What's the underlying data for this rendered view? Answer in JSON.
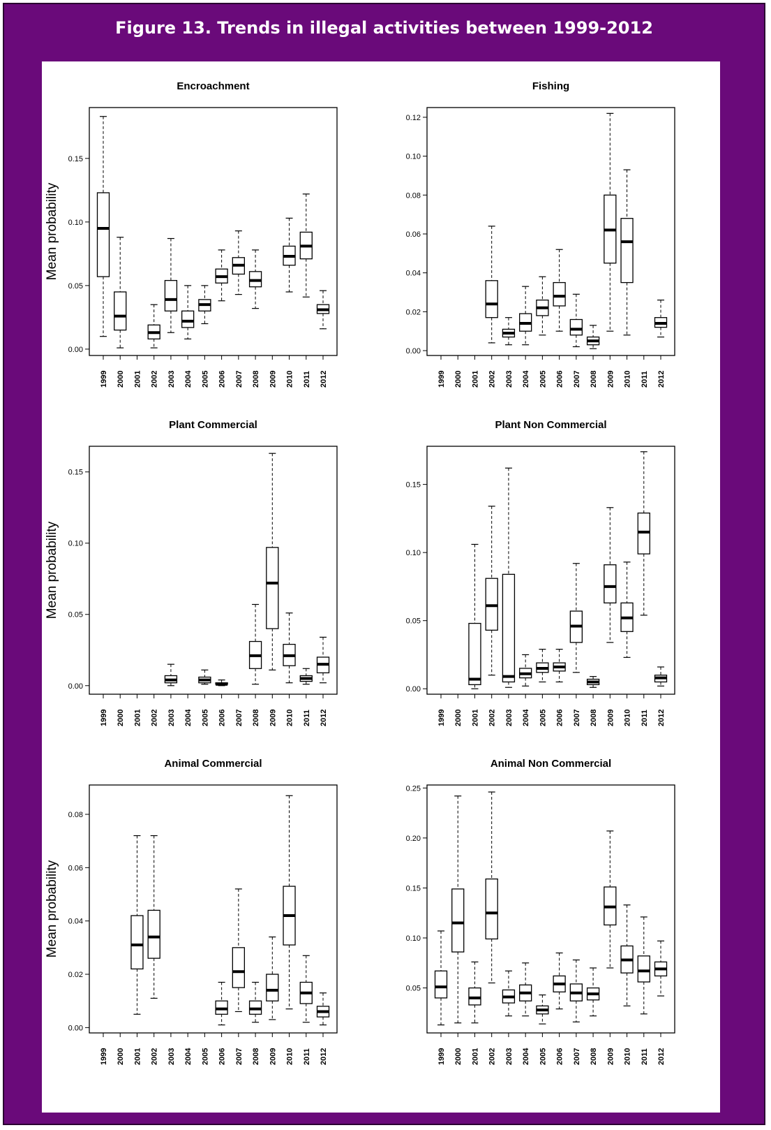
{
  "figure_title": "Figure 13. Trends in illegal activities between 1999-2012",
  "colors": {
    "frame": "#6a0a7a",
    "panel": "#ffffff",
    "ink": "#000000"
  },
  "chart_data": [
    {
      "type": "boxplot",
      "title": "Encroachment",
      "ylabel": "Mean probability",
      "ylim": [
        -0.005,
        0.19
      ],
      "yticks": [
        0.0,
        0.05,
        0.1,
        0.15
      ],
      "ytick_labels": [
        "0.00",
        "0.05",
        "0.10",
        "0.15"
      ],
      "categories": [
        "1999",
        "2000",
        "2001",
        "2002",
        "2003",
        "2004",
        "2005",
        "2006",
        "2007",
        "2008",
        "2009",
        "2010",
        "2011",
        "2012"
      ],
      "boxes": [
        {
          "year": "1999",
          "min": 0.01,
          "q1": 0.057,
          "median": 0.095,
          "q3": 0.123,
          "max": 0.183
        },
        {
          "year": "2000",
          "min": 0.001,
          "q1": 0.015,
          "median": 0.026,
          "q3": 0.045,
          "max": 0.088
        },
        {
          "year": "2002",
          "min": 0.001,
          "q1": 0.008,
          "median": 0.013,
          "q3": 0.019,
          "max": 0.035
        },
        {
          "year": "2003",
          "min": 0.013,
          "q1": 0.03,
          "median": 0.039,
          "q3": 0.054,
          "max": 0.087
        },
        {
          "year": "2004",
          "min": 0.008,
          "q1": 0.017,
          "median": 0.022,
          "q3": 0.03,
          "max": 0.05
        },
        {
          "year": "2005",
          "min": 0.02,
          "q1": 0.03,
          "median": 0.035,
          "q3": 0.039,
          "max": 0.05
        },
        {
          "year": "2006",
          "min": 0.038,
          "q1": 0.052,
          "median": 0.057,
          "q3": 0.063,
          "max": 0.078
        },
        {
          "year": "2007",
          "min": 0.043,
          "q1": 0.059,
          "median": 0.066,
          "q3": 0.072,
          "max": 0.093
        },
        {
          "year": "2008",
          "min": 0.032,
          "q1": 0.049,
          "median": 0.054,
          "q3": 0.061,
          "max": 0.078
        },
        {
          "year": "2010",
          "min": 0.045,
          "q1": 0.066,
          "median": 0.073,
          "q3": 0.081,
          "max": 0.103
        },
        {
          "year": "2011",
          "min": 0.041,
          "q1": 0.071,
          "median": 0.081,
          "q3": 0.092,
          "max": 0.122
        },
        {
          "year": "2012",
          "min": 0.016,
          "q1": 0.028,
          "median": 0.031,
          "q3": 0.035,
          "max": 0.046
        }
      ]
    },
    {
      "type": "boxplot",
      "title": "Fishing",
      "ylabel": "",
      "ylim": [
        -0.0025,
        0.125
      ],
      "yticks": [
        0.0,
        0.02,
        0.04,
        0.06,
        0.08,
        0.1,
        0.12
      ],
      "ytick_labels": [
        "0.00",
        "0.02",
        "0.04",
        "0.06",
        "0.08",
        "0.10",
        "0.12"
      ],
      "categories": [
        "1999",
        "2000",
        "2001",
        "2002",
        "2003",
        "2004",
        "2005",
        "2006",
        "2007",
        "2008",
        "2009",
        "2010",
        "2011",
        "2012"
      ],
      "boxes": [
        {
          "year": "2002",
          "min": 0.004,
          "q1": 0.017,
          "median": 0.024,
          "q3": 0.036,
          "max": 0.064
        },
        {
          "year": "2003",
          "min": 0.003,
          "q1": 0.007,
          "median": 0.009,
          "q3": 0.011,
          "max": 0.017
        },
        {
          "year": "2004",
          "min": 0.003,
          "q1": 0.01,
          "median": 0.014,
          "q3": 0.019,
          "max": 0.033
        },
        {
          "year": "2005",
          "min": 0.008,
          "q1": 0.018,
          "median": 0.022,
          "q3": 0.026,
          "max": 0.038
        },
        {
          "year": "2006",
          "min": 0.01,
          "q1": 0.023,
          "median": 0.028,
          "q3": 0.035,
          "max": 0.052
        },
        {
          "year": "2007",
          "min": 0.002,
          "q1": 0.008,
          "median": 0.011,
          "q3": 0.016,
          "max": 0.029
        },
        {
          "year": "2008",
          "min": 0.001,
          "q1": 0.003,
          "median": 0.005,
          "q3": 0.007,
          "max": 0.013
        },
        {
          "year": "2009",
          "min": 0.01,
          "q1": 0.045,
          "median": 0.062,
          "q3": 0.08,
          "max": 0.122
        },
        {
          "year": "2010",
          "min": 0.008,
          "q1": 0.035,
          "median": 0.056,
          "q3": 0.068,
          "max": 0.093
        },
        {
          "year": "2012",
          "min": 0.007,
          "q1": 0.012,
          "median": 0.014,
          "q3": 0.017,
          "max": 0.026
        }
      ]
    },
    {
      "type": "boxplot",
      "title": "Plant Commercial",
      "ylabel": "Mean probability",
      "ylim": [
        -0.006,
        0.168
      ],
      "yticks": [
        0.0,
        0.05,
        0.1,
        0.15
      ],
      "ytick_labels": [
        "0.00",
        "0.05",
        "0.10",
        "0.15"
      ],
      "categories": [
        "1999",
        "2000",
        "2001",
        "2002",
        "2003",
        "2004",
        "2005",
        "2006",
        "2007",
        "2008",
        "2009",
        "2010",
        "2011",
        "2012"
      ],
      "boxes": [
        {
          "year": "2003",
          "min": 0.0,
          "q1": 0.002,
          "median": 0.004,
          "q3": 0.007,
          "max": 0.015
        },
        {
          "year": "2005",
          "min": 0.001,
          "q1": 0.002,
          "median": 0.004,
          "q3": 0.006,
          "max": 0.011
        },
        {
          "year": "2006",
          "min": 0.0,
          "q1": 0.001,
          "median": 0.001,
          "q3": 0.002,
          "max": 0.004
        },
        {
          "year": "2008",
          "min": 0.001,
          "q1": 0.012,
          "median": 0.021,
          "q3": 0.031,
          "max": 0.057
        },
        {
          "year": "2009",
          "min": 0.011,
          "q1": 0.04,
          "median": 0.072,
          "q3": 0.097,
          "max": 0.163
        },
        {
          "year": "2010",
          "min": 0.002,
          "q1": 0.014,
          "median": 0.021,
          "q3": 0.029,
          "max": 0.051
        },
        {
          "year": "2011",
          "min": 0.001,
          "q1": 0.003,
          "median": 0.005,
          "q3": 0.007,
          "max": 0.012
        },
        {
          "year": "2012",
          "min": 0.002,
          "q1": 0.009,
          "median": 0.015,
          "q3": 0.02,
          "max": 0.034
        }
      ]
    },
    {
      "type": "boxplot",
      "title": "Plant Non Commercial",
      "ylabel": "",
      "ylim": [
        -0.004,
        0.178
      ],
      "yticks": [
        0.0,
        0.05,
        0.1,
        0.15
      ],
      "ytick_labels": [
        "0.00",
        "0.05",
        "0.10",
        "0.15"
      ],
      "categories": [
        "1999",
        "2000",
        "2001",
        "2002",
        "2003",
        "2004",
        "2005",
        "2006",
        "2007",
        "2008",
        "2009",
        "2010",
        "2011",
        "2012"
      ],
      "boxes": [
        {
          "year": "2001",
          "min": 0.0,
          "q1": 0.003,
          "median": 0.007,
          "q3": 0.048,
          "max": 0.106
        },
        {
          "year": "2002",
          "min": 0.01,
          "q1": 0.043,
          "median": 0.061,
          "q3": 0.081,
          "max": 0.134
        },
        {
          "year": "2003",
          "min": 0.001,
          "q1": 0.005,
          "median": 0.009,
          "q3": 0.084,
          "max": 0.162
        },
        {
          "year": "2004",
          "min": 0.002,
          "q1": 0.008,
          "median": 0.011,
          "q3": 0.015,
          "max": 0.025
        },
        {
          "year": "2005",
          "min": 0.005,
          "q1": 0.012,
          "median": 0.015,
          "q3": 0.019,
          "max": 0.029
        },
        {
          "year": "2006",
          "min": 0.005,
          "q1": 0.013,
          "median": 0.016,
          "q3": 0.019,
          "max": 0.029
        },
        {
          "year": "2007",
          "min": 0.012,
          "q1": 0.034,
          "median": 0.046,
          "q3": 0.057,
          "max": 0.092
        },
        {
          "year": "2008",
          "min": 0.001,
          "q1": 0.003,
          "median": 0.005,
          "q3": 0.007,
          "max": 0.009
        },
        {
          "year": "2009",
          "min": 0.034,
          "q1": 0.063,
          "median": 0.075,
          "q3": 0.091,
          "max": 0.133
        },
        {
          "year": "2010",
          "min": 0.023,
          "q1": 0.042,
          "median": 0.052,
          "q3": 0.063,
          "max": 0.093
        },
        {
          "year": "2011",
          "min": 0.054,
          "q1": 0.099,
          "median": 0.115,
          "q3": 0.129,
          "max": 0.174
        },
        {
          "year": "2012",
          "min": 0.002,
          "q1": 0.005,
          "median": 0.008,
          "q3": 0.01,
          "max": 0.016
        }
      ]
    },
    {
      "type": "boxplot",
      "title": "Animal Commercial",
      "ylabel": "Mean probability",
      "ylim": [
        -0.002,
        0.091
      ],
      "yticks": [
        0.0,
        0.02,
        0.04,
        0.06,
        0.08
      ],
      "ytick_labels": [
        "0.00",
        "0.02",
        "0.04",
        "0.06",
        "0.08"
      ],
      "categories": [
        "1999",
        "2000",
        "2001",
        "2002",
        "2003",
        "2004",
        "2005",
        "2006",
        "2007",
        "2008",
        "2009",
        "2010",
        "2011",
        "2012"
      ],
      "boxes": [
        {
          "year": "2001",
          "min": 0.005,
          "q1": 0.022,
          "median": 0.031,
          "q3": 0.042,
          "max": 0.072
        },
        {
          "year": "2002",
          "min": 0.011,
          "q1": 0.026,
          "median": 0.034,
          "q3": 0.044,
          "max": 0.072
        },
        {
          "year": "2006",
          "min": 0.001,
          "q1": 0.005,
          "median": 0.007,
          "q3": 0.01,
          "max": 0.017
        },
        {
          "year": "2007",
          "min": 0.006,
          "q1": 0.015,
          "median": 0.021,
          "q3": 0.03,
          "max": 0.052
        },
        {
          "year": "2008",
          "min": 0.002,
          "q1": 0.005,
          "median": 0.007,
          "q3": 0.01,
          "max": 0.017
        },
        {
          "year": "2009",
          "min": 0.003,
          "q1": 0.01,
          "median": 0.014,
          "q3": 0.02,
          "max": 0.034
        },
        {
          "year": "2010",
          "min": 0.007,
          "q1": 0.031,
          "median": 0.042,
          "q3": 0.053,
          "max": 0.087
        },
        {
          "year": "2011",
          "min": 0.002,
          "q1": 0.009,
          "median": 0.013,
          "q3": 0.017,
          "max": 0.027
        },
        {
          "year": "2012",
          "min": 0.001,
          "q1": 0.004,
          "median": 0.006,
          "q3": 0.008,
          "max": 0.013
        }
      ]
    },
    {
      "type": "boxplot",
      "title": "Animal Non Commercial",
      "ylabel": "",
      "ylim": [
        0.005,
        0.253
      ],
      "yticks": [
        0.05,
        0.1,
        0.15,
        0.2,
        0.25
      ],
      "ytick_labels": [
        "0.05",
        "0.10",
        "0.15",
        "0.20",
        "0.25"
      ],
      "categories": [
        "1999",
        "2000",
        "2001",
        "2002",
        "2003",
        "2004",
        "2005",
        "2006",
        "2007",
        "2008",
        "2009",
        "2010",
        "2011",
        "2012"
      ],
      "boxes": [
        {
          "year": "1999",
          "min": 0.013,
          "q1": 0.04,
          "median": 0.051,
          "q3": 0.067,
          "max": 0.107
        },
        {
          "year": "2000",
          "min": 0.015,
          "q1": 0.086,
          "median": 0.115,
          "q3": 0.149,
          "max": 0.242
        },
        {
          "year": "2001",
          "min": 0.015,
          "q1": 0.033,
          "median": 0.04,
          "q3": 0.05,
          "max": 0.076
        },
        {
          "year": "2002",
          "min": 0.055,
          "q1": 0.099,
          "median": 0.125,
          "q3": 0.159,
          "max": 0.246
        },
        {
          "year": "2003",
          "min": 0.022,
          "q1": 0.035,
          "median": 0.041,
          "q3": 0.048,
          "max": 0.067
        },
        {
          "year": "2004",
          "min": 0.022,
          "q1": 0.037,
          "median": 0.045,
          "q3": 0.053,
          "max": 0.075
        },
        {
          "year": "2005",
          "min": 0.014,
          "q1": 0.024,
          "median": 0.028,
          "q3": 0.032,
          "max": 0.043
        },
        {
          "year": "2006",
          "min": 0.029,
          "q1": 0.046,
          "median": 0.054,
          "q3": 0.062,
          "max": 0.085
        },
        {
          "year": "2007",
          "min": 0.016,
          "q1": 0.037,
          "median": 0.045,
          "q3": 0.054,
          "max": 0.078
        },
        {
          "year": "2008",
          "min": 0.022,
          "q1": 0.038,
          "median": 0.044,
          "q3": 0.05,
          "max": 0.07
        },
        {
          "year": "2009",
          "min": 0.07,
          "q1": 0.113,
          "median": 0.131,
          "q3": 0.151,
          "max": 0.207
        },
        {
          "year": "2010",
          "min": 0.032,
          "q1": 0.065,
          "median": 0.078,
          "q3": 0.092,
          "max": 0.133
        },
        {
          "year": "2011",
          "min": 0.024,
          "q1": 0.056,
          "median": 0.067,
          "q3": 0.082,
          "max": 0.121
        },
        {
          "year": "2012",
          "min": 0.042,
          "q1": 0.062,
          "median": 0.069,
          "q3": 0.076,
          "max": 0.097
        }
      ]
    }
  ]
}
